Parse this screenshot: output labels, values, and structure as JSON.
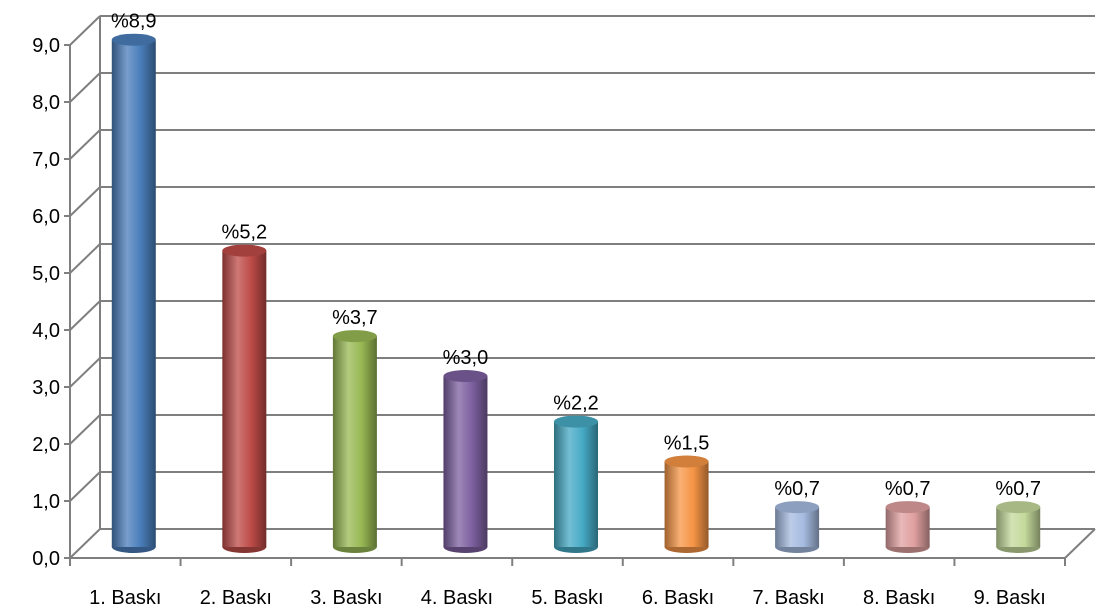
{
  "chart_data": {
    "type": "bar",
    "categories": [
      "1. Baskı",
      "2. Baskı",
      "3. Baskı",
      "4. Baskı",
      "5. Baskı",
      "6. Baskı",
      "7. Baskı",
      "8. Baskı",
      "9. Baskı"
    ],
    "values": [
      8.9,
      5.2,
      3.7,
      3.0,
      2.2,
      1.5,
      0.7,
      0.7,
      0.7
    ],
    "data_labels": [
      "%8,9",
      "%5,2",
      "%3,7",
      "%3,0",
      "%2,2",
      "%1,5",
      "%0,7",
      "%0,7",
      "%0,7"
    ],
    "y_tick_labels": [
      "0,0",
      "1,0",
      "2,0",
      "3,0",
      "4,0",
      "5,0",
      "6,0",
      "7,0",
      "8,0",
      "9,0"
    ],
    "ylim": [
      0,
      9
    ],
    "grid": true,
    "style": "3d-cylinder",
    "colors": [
      "#4a7ebb",
      "#be4b48",
      "#98b954",
      "#7d60a0",
      "#46aac5",
      "#f69545",
      "#a5bbe0",
      "#e0a0a0",
      "#c4d99b"
    ]
  }
}
